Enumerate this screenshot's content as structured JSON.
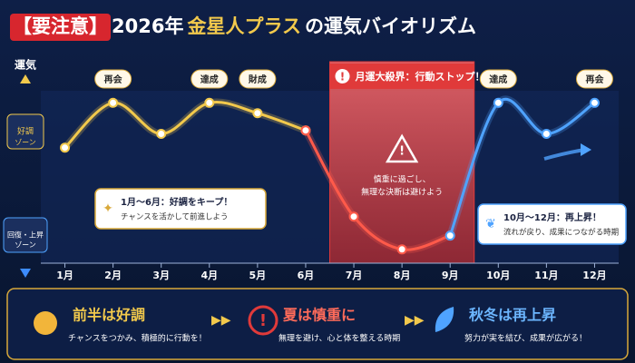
{
  "chart_data": {
    "type": "line",
    "title": [
      "【要注意】",
      "2026年 ",
      "金星人プラス",
      "の運気バイオリズム"
    ],
    "y_label": "運気",
    "zones": [
      [
        "好調",
        "ゾーン"
      ],
      [
        "回復・上昇",
        "ゾーン"
      ]
    ],
    "categories": [
      "1月",
      "2月",
      "3月",
      "4月",
      "5月",
      "6月",
      "7月",
      "8月",
      "9月",
      "10月",
      "11月",
      "12月"
    ],
    "series": [
      {
        "color": "#f2c94c",
        "values": [
          67,
          93,
          75,
          93,
          87,
          77,
          null,
          null,
          null,
          null,
          null,
          null
        ]
      },
      {
        "color": "#ff5a4a",
        "values": [
          null,
          null,
          null,
          null,
          null,
          77,
          27,
          8,
          16,
          null,
          null,
          null
        ]
      },
      {
        "color": "#4fa3ff",
        "values": [
          null,
          null,
          null,
          null,
          null,
          null,
          null,
          null,
          16,
          93,
          75,
          93
        ]
      }
    ],
    "point_labels": [
      null,
      "再会",
      null,
      "達成",
      "財成",
      null,
      null,
      null,
      null,
      "達成",
      null,
      "再会"
    ],
    "ylim": [
      0,
      100
    ],
    "highlight": {
      "from": "7月",
      "to": "9月",
      "label": "月運大殺界：行動ストップ！",
      "note": [
        "慎重に過ごし、",
        "無理な決断は避けよう"
      ],
      "color": "#e03a3a"
    },
    "callouts": [
      {
        "title": "1月〜6月：好調をキープ！",
        "text": "チャンスを活かして前進しよう"
      },
      {
        "title": "10月〜12月：再上昇！",
        "text": "流れが戻り、成果につながる時期"
      }
    ],
    "summary": [
      {
        "heading": "前半は好調",
        "text": "チャンスをつかみ、積極的に行動を！"
      },
      {
        "heading": "夏は慎重に",
        "text": "無理を避け、心と体を整える時期"
      },
      {
        "heading": "秋冬は再上昇",
        "text": "努力が実を結び、成果が広がる！"
      }
    ]
  }
}
